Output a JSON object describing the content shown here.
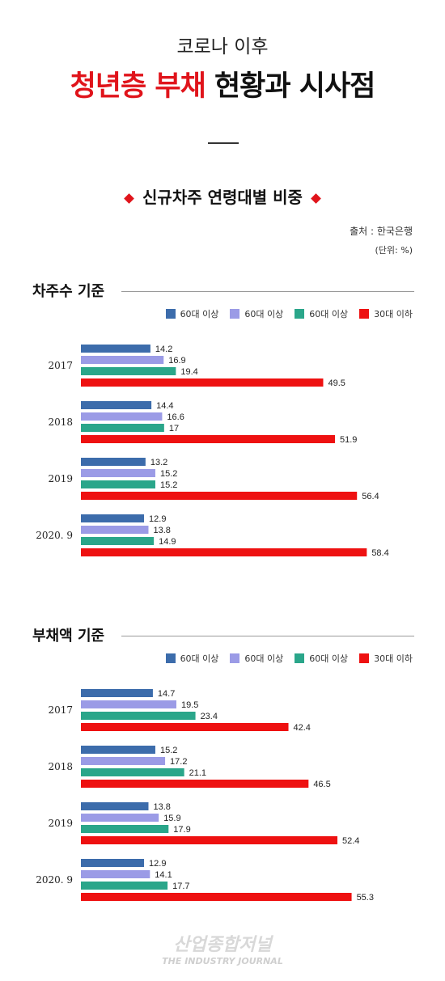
{
  "header": {
    "subtitle": "코로나 이후",
    "title_red": "청년층 부채",
    "title_black": "현황과 시사점"
  },
  "section": {
    "title": "신규차주 연령대별 비중",
    "source": "출처 : 한국은행",
    "unit": "(단위: %)"
  },
  "chart_data": [
    {
      "type": "bar",
      "title": "차주수 기준",
      "categories": [
        "2017",
        "2018",
        "2019",
        "2020. 9"
      ],
      "series": [
        {
          "name": "60대 이상",
          "color": "#3c6cab",
          "values": [
            14.2,
            14.4,
            13.2,
            12.9
          ]
        },
        {
          "name": "60대 이상",
          "color": "#9b9be6",
          "values": [
            16.9,
            16.6,
            15.2,
            13.8
          ]
        },
        {
          "name": "60대 이상",
          "color": "#2aa68a",
          "values": [
            19.4,
            17,
            15.2,
            14.9
          ]
        },
        {
          "name": "30대 이하",
          "color": "#ee1111",
          "values": [
            49.5,
            51.9,
            56.4,
            58.4
          ]
        }
      ]
    },
    {
      "type": "bar",
      "title": "부채액 기준",
      "categories": [
        "2017",
        "2018",
        "2019",
        "2020. 9"
      ],
      "series": [
        {
          "name": "60대 이상",
          "color": "#3c6cab",
          "values": [
            14.7,
            15.2,
            13.8,
            12.9
          ]
        },
        {
          "name": "60대 이상",
          "color": "#9b9be6",
          "values": [
            19.5,
            17.2,
            15.9,
            14.1
          ]
        },
        {
          "name": "60대 이상",
          "color": "#2aa68a",
          "values": [
            23.4,
            21.1,
            17.9,
            17.7
          ]
        },
        {
          "name": "30대 이하",
          "color": "#ee1111",
          "values": [
            42.4,
            46.5,
            52.4,
            55.3
          ]
        }
      ]
    }
  ],
  "watermark": {
    "line1": "산업종합저널",
    "line2": "THE INDUSTRY JOURNAL"
  }
}
